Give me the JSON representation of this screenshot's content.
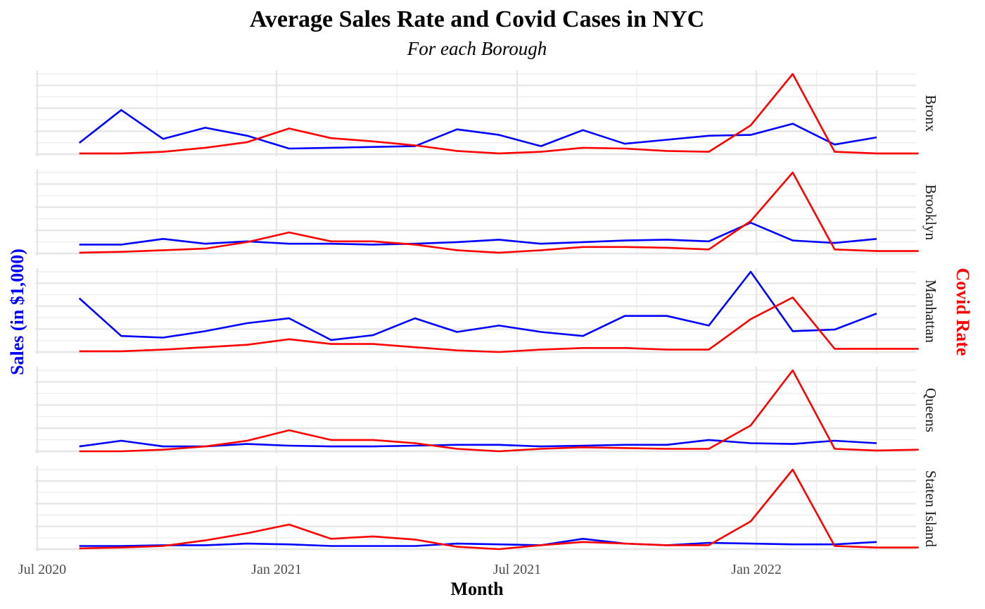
{
  "chart_data": {
    "type": "line",
    "title": "Average Sales Rate and Covid Cases in NYC",
    "subtitle": "For each Borough",
    "xlabel": "Month",
    "ylabel_left": "Sales (in $1,000)",
    "ylabel_right": "Covid Rate",
    "x_ticks": [
      "Jul 2020",
      "Jan 2021",
      "Jul 2021",
      "Jan 2022"
    ],
    "colors": {
      "sales": "#0000ff",
      "covid": "#ff0000"
    },
    "x": [
      "2020-08",
      "2020-09",
      "2020-10",
      "2020-11",
      "2020-12",
      "2021-01",
      "2021-02",
      "2021-03",
      "2021-04",
      "2021-05",
      "2021-06",
      "2021-07",
      "2021-08",
      "2021-09",
      "2021-10",
      "2021-11",
      "2021-12",
      "2022-01",
      "2022-02",
      "2022-03",
      "2022-04"
    ],
    "grid": true,
    "panels": [
      {
        "name": "Bronx",
        "series": [
          {
            "key": "sales",
            "values": [
              0.14,
              0.55,
              0.19,
              0.33,
              0.23,
              0.07,
              0.08,
              0.09,
              0.1,
              0.31,
              0.24,
              0.1,
              0.3,
              0.13,
              0.18,
              0.23,
              0.24,
              0.38,
              0.12,
              0.21,
              null
            ]
          },
          {
            "key": "covid",
            "values": [
              0.01,
              0.01,
              0.03,
              0.08,
              0.15,
              0.32,
              0.2,
              0.16,
              0.11,
              0.04,
              0.01,
              0.03,
              0.08,
              0.07,
              0.04,
              0.03,
              0.36,
              1.0,
              0.03,
              0.01,
              0.01
            ]
          }
        ]
      },
      {
        "name": "Brooklyn",
        "series": [
          {
            "key": "sales",
            "values": [
              0.11,
              0.11,
              0.18,
              0.12,
              0.15,
              0.12,
              0.12,
              0.11,
              0.12,
              0.14,
              0.17,
              0.12,
              0.14,
              0.16,
              0.17,
              0.15,
              0.38,
              0.16,
              0.13,
              0.18,
              null
            ]
          },
          {
            "key": "covid",
            "values": [
              0.01,
              0.02,
              0.04,
              0.06,
              0.14,
              0.26,
              0.15,
              0.15,
              0.11,
              0.04,
              0.01,
              0.04,
              0.08,
              0.08,
              0.07,
              0.05,
              0.4,
              1.0,
              0.05,
              0.03,
              0.03
            ]
          }
        ]
      },
      {
        "name": "Manhattan",
        "series": [
          {
            "key": "sales",
            "values": [
              0.67,
              0.2,
              0.18,
              0.26,
              0.36,
              0.42,
              0.15,
              0.21,
              0.42,
              0.25,
              0.33,
              0.25,
              0.2,
              0.45,
              0.45,
              0.33,
              1.0,
              0.26,
              0.28,
              0.48,
              null
            ]
          },
          {
            "key": "covid",
            "values": [
              0.01,
              0.01,
              0.03,
              0.06,
              0.09,
              0.16,
              0.1,
              0.1,
              0.06,
              0.02,
              0.0,
              0.03,
              0.05,
              0.05,
              0.03,
              0.03,
              0.41,
              0.68,
              0.04,
              0.04,
              0.04
            ]
          }
        ]
      },
      {
        "name": "Queens",
        "series": [
          {
            "key": "sales",
            "values": [
              0.06,
              0.13,
              0.06,
              0.06,
              0.09,
              0.07,
              0.06,
              0.06,
              0.07,
              0.08,
              0.08,
              0.06,
              0.07,
              0.08,
              0.08,
              0.14,
              0.1,
              0.09,
              0.13,
              0.1,
              null
            ]
          },
          {
            "key": "covid",
            "values": [
              0.0,
              0.0,
              0.02,
              0.06,
              0.13,
              0.26,
              0.14,
              0.14,
              0.1,
              0.03,
              0.0,
              0.03,
              0.05,
              0.04,
              0.03,
              0.03,
              0.32,
              1.0,
              0.03,
              0.01,
              0.02
            ]
          }
        ]
      },
      {
        "name": "Staten Island",
        "series": [
          {
            "key": "sales",
            "values": [
              0.04,
              0.04,
              0.05,
              0.05,
              0.07,
              0.06,
              0.04,
              0.04,
              0.04,
              0.07,
              0.06,
              0.05,
              0.13,
              0.07,
              0.05,
              0.08,
              0.07,
              0.06,
              0.06,
              0.09,
              null
            ]
          },
          {
            "key": "covid",
            "values": [
              0.01,
              0.02,
              0.04,
              0.11,
              0.2,
              0.31,
              0.13,
              0.16,
              0.12,
              0.03,
              0.0,
              0.05,
              0.09,
              0.07,
              0.05,
              0.05,
              0.35,
              1.0,
              0.04,
              0.02,
              0.02
            ]
          }
        ]
      }
    ]
  }
}
